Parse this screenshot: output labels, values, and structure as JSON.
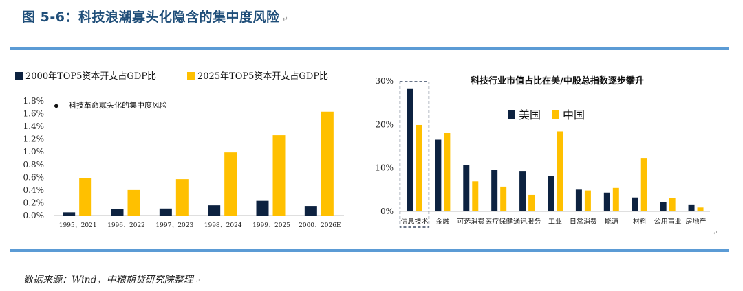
{
  "figure_title": "图 5-6：科技浪潮寡头化隐含的集中度风险",
  "source": "数据来源：Wind，中粮期货研究院整理",
  "colors": {
    "navy": "#0d2240",
    "gold": "#ffc000",
    "accent": "#5b9bd5",
    "title": "#1f4e79"
  },
  "chart_data": [
    {
      "type": "bar",
      "title": "",
      "legend_position": "top",
      "categories": [
        "1995、2021",
        "1996、2022",
        "1997、2023",
        "1998、2024",
        "1999、2025",
        "2000、2026E"
      ],
      "series": [
        {
          "name": "2000年TOP5资本开支占GDP比",
          "color": "#0d2240",
          "values": [
            0.05,
            0.1,
            0.11,
            0.16,
            0.23,
            0.15
          ]
        },
        {
          "name": "2025年TOP5资本开支占GDP比",
          "color": "#ffc000",
          "values": [
            0.59,
            0.4,
            0.57,
            0.99,
            1.26,
            1.63
          ]
        }
      ],
      "annotation": "科技革命寡头化的集中度风险",
      "annotation_marker": "◆",
      "ylim": [
        0,
        1.8
      ],
      "yticks": [
        0,
        0.2,
        0.4,
        0.6,
        0.8,
        1.0,
        1.2,
        1.4,
        1.6,
        1.8
      ],
      "ytick_labels": [
        "0.0%",
        "0.2%",
        "0.4%",
        "0.6%",
        "0.8%",
        "1.0%",
        "1.2%",
        "1.4%",
        "1.6%",
        "1.8%"
      ],
      "grid": false
    },
    {
      "type": "bar",
      "title": "科技行业市值占比在美/中股总指数逐步攀升",
      "legend_position": "center",
      "categories": [
        "信息技术",
        "金融",
        "可选消费",
        "医疗保健",
        "通讯服务",
        "工业",
        "日常消费",
        "能源",
        "材料",
        "公用事业",
        "房地产"
      ],
      "series": [
        {
          "name": "美国",
          "color": "#0d2240",
          "values": [
            28.3,
            16.5,
            10.6,
            9.6,
            9.3,
            8.2,
            5.0,
            4.3,
            3.2,
            2.2,
            1.6
          ]
        },
        {
          "name": "中国",
          "color": "#ffc000",
          "values": [
            19.9,
            18.0,
            6.9,
            5.7,
            3.8,
            18.4,
            4.8,
            5.4,
            12.3,
            3.1,
            0.9
          ]
        }
      ],
      "highlight_category": "信息技术",
      "ylim": [
        0,
        30
      ],
      "yticks": [
        0,
        10,
        20,
        30
      ],
      "ytick_labels": [
        "0%",
        "10%",
        "20%",
        "30%"
      ],
      "grid": false
    }
  ]
}
